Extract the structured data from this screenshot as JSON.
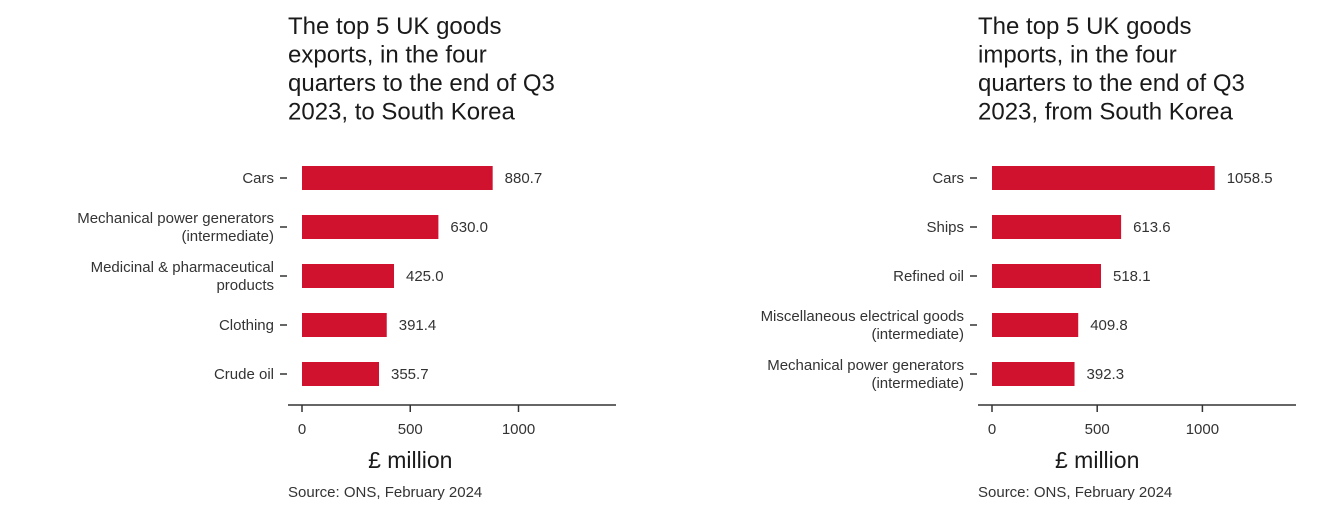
{
  "chart_data": [
    {
      "type": "bar",
      "orientation": "horizontal",
      "title": "The top 5 UK goods exports, in the four quarters to the end of Q3 2023, to South Korea",
      "title_lines": [
        "The top 5 UK goods",
        "exports, in the four",
        "quarters to the end of Q3",
        "2023, to South Korea"
      ],
      "categories": [
        [
          "Cars"
        ],
        [
          "Mechanical power generators",
          "(intermediate)"
        ],
        [
          "Medicinal & pharmaceutical",
          "products"
        ],
        [
          "Clothing"
        ],
        [
          "Crude oil"
        ]
      ],
      "values": [
        880.7,
        630.0,
        425.0,
        391.4,
        355.7
      ],
      "value_labels": [
        "880.7",
        "630.0",
        "425.0",
        "391.4",
        "355.7"
      ],
      "xlabel": "£ million",
      "xlim": [
        0,
        1400
      ],
      "xticks": [
        0,
        500,
        1000
      ],
      "xtick_labels": [
        "0",
        "500",
        "1000"
      ],
      "source": "Source: ONS, February 2024",
      "bar_color": "#d0122f",
      "grid": false
    },
    {
      "type": "bar",
      "orientation": "horizontal",
      "title": "The top 5 UK goods imports, in the four quarters to the end of Q3 2023, from South Korea",
      "title_lines": [
        "The top 5 UK goods",
        "imports, in the four",
        "quarters to the end of Q3",
        "2023, from South Korea"
      ],
      "categories": [
        [
          "Cars"
        ],
        [
          "Ships"
        ],
        [
          "Refined oil"
        ],
        [
          "Miscellaneous electrical goods",
          "(intermediate)"
        ],
        [
          "Mechanical power generators",
          "(intermediate)"
        ]
      ],
      "values": [
        1058.5,
        613.6,
        518.1,
        409.8,
        392.3
      ],
      "value_labels": [
        "1058.5",
        "613.6",
        "518.1",
        "409.8",
        "392.3"
      ],
      "xlabel": "£ million",
      "xlim": [
        0,
        1400
      ],
      "xticks": [
        0,
        500,
        1000
      ],
      "xtick_labels": [
        "0",
        "500",
        "1000"
      ],
      "source": "Source: ONS, February 2024",
      "bar_color": "#d0122f",
      "grid": false
    }
  ]
}
